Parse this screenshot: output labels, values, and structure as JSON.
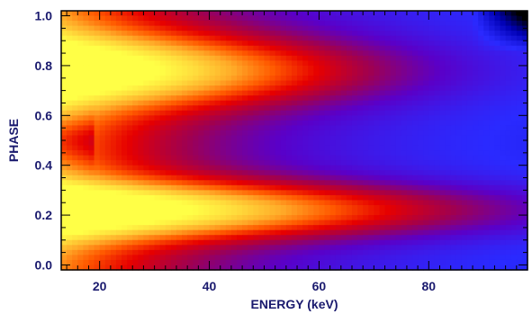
{
  "chart_data": {
    "type": "heatmap",
    "title": "",
    "xlabel": "ENERGY (keV)",
    "ylabel": "PHASE",
    "xlim": [
      13,
      98
    ],
    "ylim": [
      -0.02,
      1.02
    ],
    "x_ticks": [
      20,
      40,
      60,
      80
    ],
    "x_tick_labels": [
      "20",
      "40",
      "60",
      "80"
    ],
    "y_ticks": [
      0.0,
      0.2,
      0.4,
      0.6,
      0.8,
      1.0
    ],
    "y_tick_labels": [
      "0.0",
      "0.2",
      "0.4",
      "0.6",
      "0.8",
      "1.0"
    ],
    "x_minor_step": 2,
    "y_minor_step": 0.05,
    "colormap": [
      "#000000",
      "#0000b4",
      "#2a2aff",
      "#5a00c8",
      "#a00050",
      "#e60000",
      "#ff5a00",
      "#ffaa28",
      "#ffdc3c",
      "#ffff46"
    ],
    "intensity_model": {
      "description_of_features": "two pulse peaks near phase 0.22 and 0.78",
      "peaks": [
        {
          "phase_center": 0.22,
          "energy_falloff_keV": 68,
          "phase_width": 0.11,
          "amplitude": 1.0
        },
        {
          "phase_center": 0.78,
          "energy_falloff_keV": 52,
          "phase_width": 0.14,
          "amplitude": 0.9
        }
      ],
      "baseline_falloff_keV": 30,
      "baseline_amplitude": 0.55
    }
  }
}
